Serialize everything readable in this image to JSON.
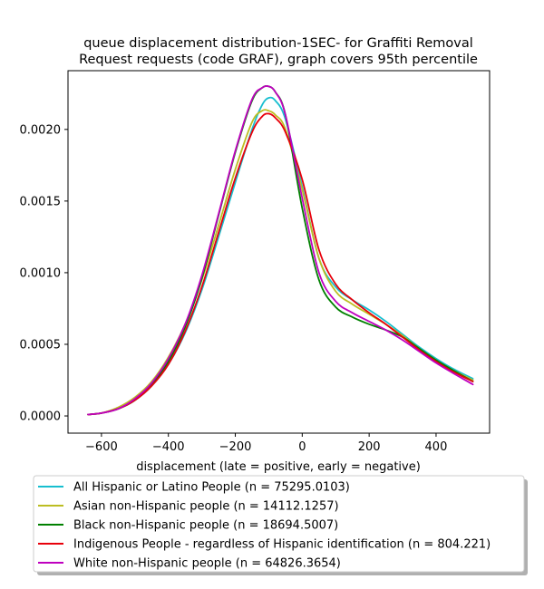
{
  "chart_data": {
    "type": "line",
    "title_lines": [
      "queue displacement distribution-1SEC-  for Graffiti Removal",
      "Request  requests (code GRAF), graph covers 95th percentile"
    ],
    "xlabel": "displacement (late = positive, early = negative)",
    "ylabel": "",
    "xlim": [
      -700,
      560
    ],
    "ylim": [
      -0.00012,
      0.00241
    ],
    "x_ticks": [
      -600,
      -400,
      -200,
      0,
      200,
      400
    ],
    "x_tick_labels": [
      "−600",
      "−400",
      "−200",
      "0",
      "200",
      "400"
    ],
    "y_ticks": [
      0,
      0.0005,
      0.001,
      0.0015,
      0.002
    ],
    "y_tick_labels": [
      "0.0000",
      "0.0005",
      "0.0010",
      "0.0015",
      "0.0020"
    ],
    "grid": false,
    "legend_position": "below-plot",
    "x": [
      -640,
      -600,
      -550,
      -500,
      -450,
      -400,
      -350,
      -300,
      -250,
      -200,
      -150,
      -120,
      -100,
      -80,
      -50,
      0,
      50,
      100,
      150,
      200,
      250,
      300,
      350,
      400,
      450,
      510
    ],
    "series": [
      {
        "name": "All Hispanic or Latino People (n = 75295.0103)",
        "color": "#17becf",
        "values": [
          1e-05,
          2e-05,
          5e-05,
          0.00011,
          0.00021,
          0.00036,
          0.00058,
          0.00088,
          0.00125,
          0.00163,
          0.002,
          0.00217,
          0.00222,
          0.0022,
          0.00207,
          0.0016,
          0.0011,
          0.0009,
          0.00081,
          0.00074,
          0.00066,
          0.00057,
          0.00048,
          0.0004,
          0.00033,
          0.00026
        ]
      },
      {
        "name": "Asian non-Hispanic people (n = 14112.1257)",
        "color": "#bcbd22",
        "values": [
          1e-05,
          2e-05,
          6e-05,
          0.00013,
          0.00024,
          0.00041,
          0.00064,
          0.00095,
          0.00133,
          0.00172,
          0.00205,
          0.00213,
          0.00213,
          0.0021,
          0.002,
          0.00158,
          0.0011,
          0.00087,
          0.00078,
          0.00071,
          0.00064,
          0.00056,
          0.00047,
          0.00039,
          0.00032,
          0.00025
        ]
      },
      {
        "name": "Black non-Hispanic people (n = 18694.5007)",
        "color": "#008000",
        "values": [
          1e-05,
          2e-05,
          5e-05,
          0.00011,
          0.00022,
          0.00038,
          0.00062,
          0.00096,
          0.0014,
          0.00184,
          0.0022,
          0.00229,
          0.0023,
          0.00226,
          0.0021,
          0.00145,
          0.00095,
          0.00076,
          0.00069,
          0.00064,
          0.0006,
          0.00055,
          0.00047,
          0.00039,
          0.00032,
          0.00024
        ]
      },
      {
        "name": "Indigenous People - regardless of Hispanic identification (n = 804.221)",
        "color": "#e8000b",
        "values": [
          1e-05,
          2e-05,
          5e-05,
          0.00011,
          0.00021,
          0.00036,
          0.00059,
          0.0009,
          0.00128,
          0.00166,
          0.00198,
          0.00209,
          0.00211,
          0.00208,
          0.00198,
          0.00165,
          0.00116,
          0.00092,
          0.00081,
          0.00072,
          0.00064,
          0.00055,
          0.00046,
          0.00038,
          0.00031,
          0.00024
        ]
      },
      {
        "name": "White non-Hispanic people (n = 64826.3654)",
        "color": "#bf00bf",
        "values": [
          1e-05,
          2e-05,
          5e-05,
          0.00012,
          0.00023,
          0.0004,
          0.00064,
          0.00098,
          0.00141,
          0.00185,
          0.00221,
          0.00229,
          0.0023,
          0.00226,
          0.0021,
          0.00152,
          0.001,
          0.0008,
          0.00072,
          0.00066,
          0.0006,
          0.00053,
          0.00045,
          0.00037,
          0.0003,
          0.00022
        ]
      }
    ]
  }
}
